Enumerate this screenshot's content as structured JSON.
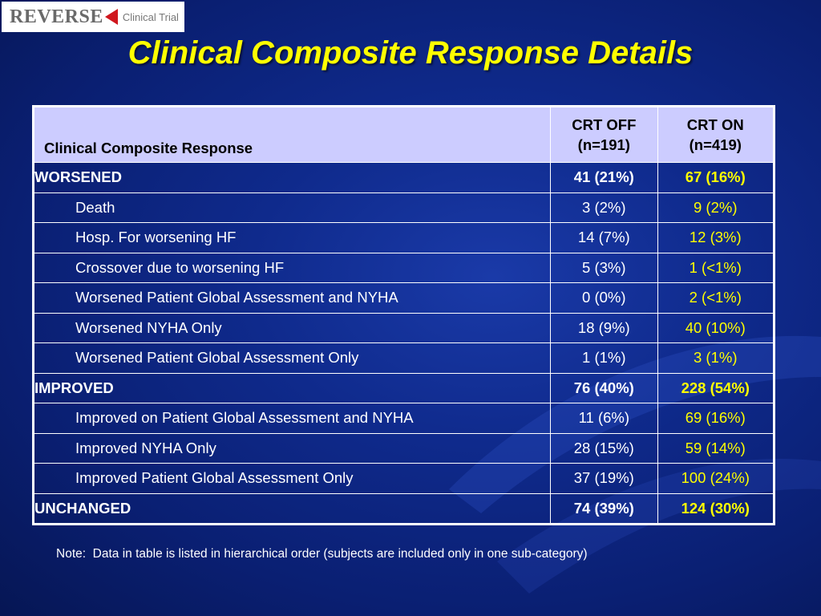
{
  "logo": {
    "word": "REVERSE",
    "sub": "Clinical Trial"
  },
  "title": "Clinical Composite Response Details",
  "table": {
    "header": {
      "label": "Clinical Composite Response",
      "off_line1": "CRT OFF",
      "off_line2": "(n=191)",
      "on_line1": "CRT ON",
      "on_line2": "(n=419)"
    },
    "rows": [
      {
        "label": "WORSENED",
        "off": "41 (21%)",
        "on": "67 (16%)",
        "level": "category"
      },
      {
        "label": "Death",
        "off": "3 (2%)",
        "on": "9 (2%)",
        "level": "sub"
      },
      {
        "label": "Hosp. For worsening HF",
        "off": "14 (7%)",
        "on": "12 (3%)",
        "level": "sub"
      },
      {
        "label": "Crossover due to worsening HF",
        "off": "5 (3%)",
        "on": "1 (<1%)",
        "level": "sub"
      },
      {
        "label": "Worsened Patient Global Assessment and NYHA",
        "off": "0 (0%)",
        "on": "2 (<1%)",
        "level": "sub"
      },
      {
        "label": "Worsened NYHA Only",
        "off": "18 (9%)",
        "on": "40 (10%)",
        "level": "sub"
      },
      {
        "label": "Worsened Patient Global Assessment Only",
        "off": "1 (1%)",
        "on": "3 (1%)",
        "level": "sub"
      },
      {
        "label": "IMPROVED",
        "off": "76 (40%)",
        "on": "228 (54%)",
        "level": "category"
      },
      {
        "label": "Improved on Patient Global Assessment and NYHA",
        "off": "11 (6%)",
        "on": "69 (16%)",
        "level": "sub"
      },
      {
        "label": "Improved NYHA Only",
        "off": "28 (15%)",
        "on": "59 (14%)",
        "level": "sub"
      },
      {
        "label": "Improved Patient Global Assessment Only",
        "off": "37 (19%)",
        "on": "100 (24%)",
        "level": "sub"
      },
      {
        "label": "UNCHANGED",
        "off": "74 (39%)",
        "on": "124 (30%)",
        "level": "category"
      }
    ]
  },
  "note": "Note:  Data in table is listed in hierarchical order (subjects are included only in one sub-category)",
  "colors": {
    "background": "#0f2a8c",
    "title": "#ffff00",
    "header_bg": "#ccccff",
    "crt_on_text": "#ffff00",
    "logo_arrow": "#d0171e"
  }
}
